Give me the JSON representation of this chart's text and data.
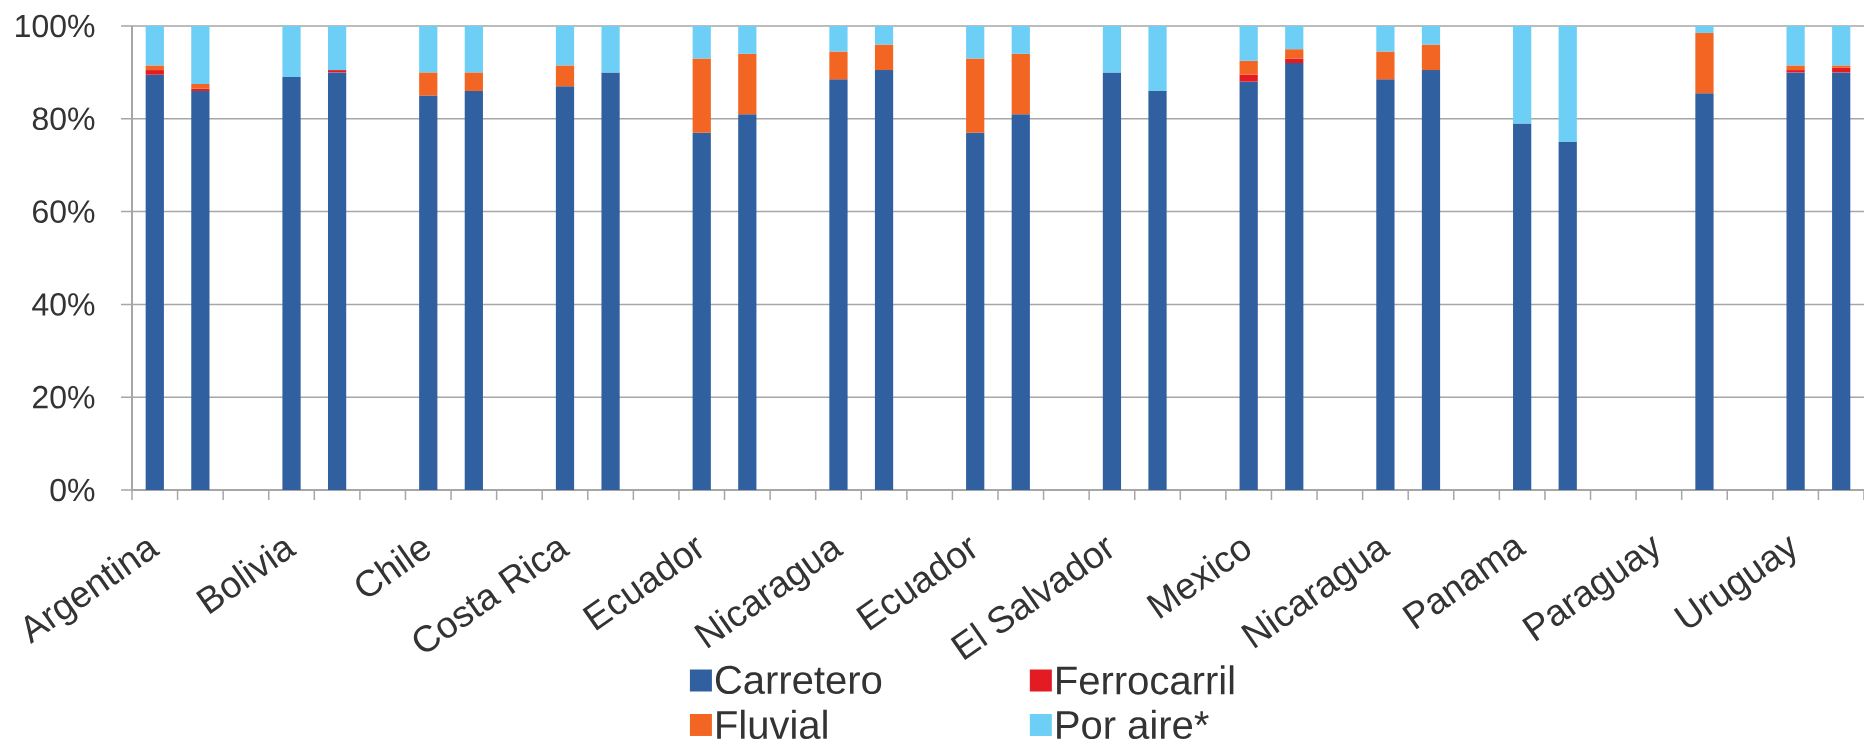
{
  "chart_data": {
    "type": "bar",
    "stacked": true,
    "categories": [
      "Argentina",
      null,
      null,
      "Bolivia",
      null,
      null,
      "Chile",
      null,
      null,
      "Costa Rica",
      null,
      null,
      "Ecuador",
      null,
      null,
      "Nicaragua",
      null,
      null,
      "Ecuador",
      null,
      null,
      "El Salvador",
      null,
      null,
      "Mexico",
      null,
      null,
      "Nicaragua",
      null,
      null,
      "Panama",
      null,
      null,
      "Paraguay",
      null,
      null,
      "Uruguay",
      null
    ],
    "series": [
      {
        "name": "Carretero",
        "color": "#3060a0",
        "values": [
          89.5,
          86,
          null,
          89,
          90,
          null,
          85,
          86,
          null,
          87,
          90,
          null,
          77,
          81,
          null,
          88.5,
          90.5,
          null,
          77,
          81,
          null,
          90,
          86,
          null,
          88,
          92,
          null,
          88.5,
          90.5,
          null,
          79,
          75,
          null,
          null,
          85.5,
          null,
          90,
          90
        ]
      },
      {
        "name": "Ferrocarril",
        "color": "#e31b23",
        "values": [
          1,
          0.5,
          null,
          null,
          0.5,
          null,
          null,
          null,
          null,
          null,
          null,
          null,
          null,
          null,
          null,
          null,
          null,
          null,
          null,
          null,
          null,
          null,
          null,
          null,
          1.5,
          1,
          null,
          null,
          null,
          null,
          null,
          null,
          null,
          null,
          null,
          null,
          0.5,
          1
        ]
      },
      {
        "name": "Fluvial",
        "color": "#f26522",
        "values": [
          1,
          1,
          null,
          null,
          null,
          null,
          5,
          4,
          null,
          4.5,
          null,
          null,
          16,
          13,
          null,
          6,
          5.5,
          null,
          16,
          13,
          null,
          null,
          null,
          null,
          3,
          2,
          null,
          6,
          5.5,
          null,
          null,
          null,
          null,
          null,
          13,
          null,
          1,
          0.5
        ]
      },
      {
        "name": "Por aire*",
        "color": "#6dcff6",
        "values": [
          8.5,
          12.5,
          null,
          11,
          9.5,
          null,
          10,
          10,
          null,
          8.5,
          10,
          null,
          7,
          6,
          null,
          5.5,
          4,
          null,
          7,
          6,
          null,
          10,
          14,
          null,
          7.5,
          5,
          null,
          5.5,
          4,
          null,
          21,
          25,
          null,
          null,
          1.5,
          null,
          8.5,
          8.5
        ]
      }
    ],
    "ylim": [
      0,
      100
    ],
    "yticks": [
      {
        "value": 0,
        "label": "0%"
      },
      {
        "value": 20,
        "label": "20%"
      },
      {
        "value": 40,
        "label": "40%"
      },
      {
        "value": 60,
        "label": "60%"
      },
      {
        "value": 80,
        "label": "80%"
      },
      {
        "value": 100,
        "label": "100%"
      }
    ],
    "grid": "y",
    "legend": "bottom"
  }
}
